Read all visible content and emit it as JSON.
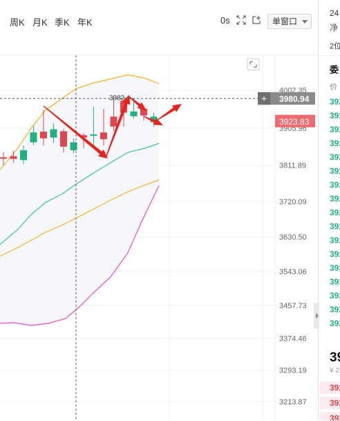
{
  "toolbar": {
    "periods": [
      "周K",
      "月K",
      "季K",
      "年K"
    ],
    "right_label": "0s",
    "window_select": "单窗口"
  },
  "chart_data": {
    "type": "candlestick",
    "y_axis_ticks": [
      4002.35,
      3905.96,
      3811.89,
      3720.09,
      3630.5,
      3543.06,
      3457.73,
      3374.46,
      3293.19,
      3213.87
    ],
    "crosshair_price": "3980.94",
    "last_price": "3923.83",
    "high_annotation": "3982",
    "candles": [
      {
        "o": 3832,
        "c": 3832,
        "h": 3845,
        "l": 3812
      },
      {
        "o": 3828,
        "c": 3835,
        "h": 3848,
        "l": 3818
      },
      {
        "o": 3850,
        "c": 3825,
        "h": 3862,
        "l": 3815
      },
      {
        "o": 3895,
        "c": 3870,
        "h": 3912,
        "l": 3863
      },
      {
        "o": 3880,
        "c": 3897,
        "h": 3952,
        "l": 3862
      },
      {
        "o": 3903,
        "c": 3882,
        "h": 3918,
        "l": 3868
      },
      {
        "o": 3859,
        "c": 3898,
        "h": 3904,
        "l": 3844
      },
      {
        "o": 3870,
        "c": 3850,
        "h": 3880,
        "l": 3843
      },
      {
        "o": 3882,
        "c": 3888,
        "h": 3893,
        "l": 3855
      },
      {
        "o": 3890,
        "c": 3889,
        "h": 3960,
        "l": 3858
      },
      {
        "o": 3878,
        "c": 3895,
        "h": 3955,
        "l": 3862
      },
      {
        "o": 3910,
        "c": 3935,
        "h": 3980,
        "l": 3898
      },
      {
        "o": 3945,
        "c": 3975,
        "h": 3978,
        "l": 3910
      },
      {
        "o": 3948,
        "c": 3936,
        "h": 3982,
        "l": 3930
      },
      {
        "o": 3938,
        "c": 3955,
        "h": 3960,
        "l": 3925
      },
      {
        "o": 3935,
        "c": 3921,
        "h": 3945,
        "l": 3910
      }
    ],
    "colors": {
      "up": "#e0464e",
      "down": "#1fb37f",
      "ma_teal": "#3cc29a",
      "ma_yellow": "#f0b323",
      "ma_magenta": "#e84cc8",
      "arrow": "#e8231b",
      "crosshair_box": "#8a8a8a"
    }
  },
  "right_panel": {
    "top_text": "24",
    "sub_text": "净",
    "tab_text": "2位",
    "section_title": "委",
    "col_header": "价",
    "green_rows": [
      "392",
      "392",
      "392",
      "392",
      "392",
      "392",
      "392",
      "392",
      "392",
      "392",
      "392",
      "392",
      "392",
      "392",
      "392",
      "392",
      "392"
    ],
    "big_price": "39",
    "yen_text": "¥ 2",
    "red_rows": [
      "392",
      "392",
      "392"
    ]
  }
}
